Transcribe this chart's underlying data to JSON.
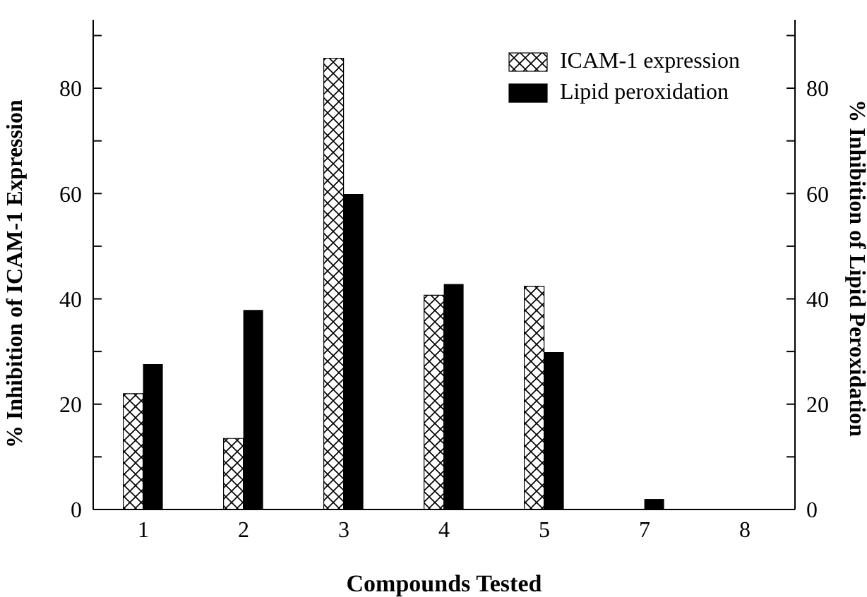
{
  "chart_data": {
    "type": "bar",
    "xlabel": "Compounds Tested",
    "ylabel": "% Inhibition of ICAM-1 Expression",
    "y2label": "% Inhibition of Lipid Peroxidation",
    "categories": [
      "1",
      "2",
      "3",
      "4",
      "5",
      "7",
      "8"
    ],
    "series": [
      {
        "name": "ICAM-1 expression",
        "color": "#000000",
        "values": [
          22,
          13.5,
          85.7,
          40.7,
          42.4,
          0,
          0
        ]
      },
      {
        "name": "Lipid peroxidation",
        "color": "#000000",
        "axis": "y2",
        "values": [
          27.6,
          37.9,
          59.9,
          42.8,
          29.9,
          2,
          0
        ]
      }
    ],
    "ylim": [
      0,
      93
    ],
    "yticks": [
      0,
      {
        "value": 10,
        "label": null
      },
      20,
      {
        "value": 30,
        "label": null
      },
      40,
      {
        "value": 50,
        "label": null
      },
      60,
      {
        "value": 70,
        "label": null
      },
      80,
      {
        "value": 90,
        "label": null
      }
    ],
    "y2lim": [
      0,
      93
    ],
    "y2ticks": [
      0,
      {
        "value": 10,
        "label": null
      },
      20,
      {
        "value": 30,
        "label": null
      },
      40,
      {
        "value": 50,
        "label": null
      },
      60,
      {
        "value": 70,
        "label": null
      },
      80,
      {
        "value": 90,
        "label": null
      }
    ],
    "legend": "top right",
    "grid": false
  }
}
